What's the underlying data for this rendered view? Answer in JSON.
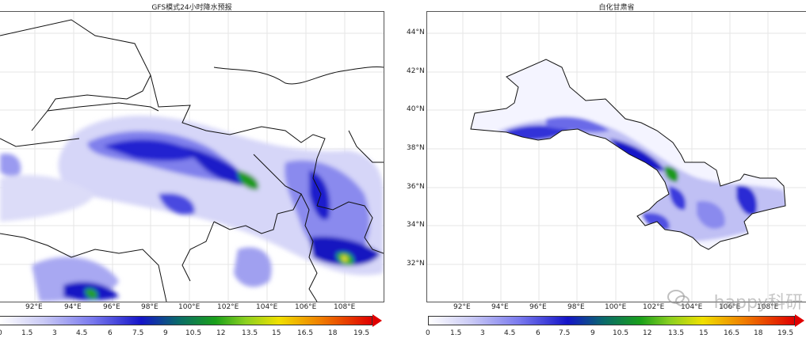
{
  "left_panel": {
    "title": "GFS模式24小时降水预报",
    "lon_labels": [
      "92°E",
      "94°E",
      "96°E",
      "98°E",
      "100°E",
      "102°E",
      "104°E",
      "106°E",
      "108°E"
    ],
    "colorbar_labels": [
      "0",
      "1.5",
      "3",
      "4.5",
      "6",
      "7.5",
      "9",
      "10.5",
      "12",
      "13.5",
      "15",
      "16.5",
      "18",
      "19.5"
    ]
  },
  "right_panel": {
    "title": "白化甘肃省",
    "lon_labels": [
      "92°E",
      "94°E",
      "96°E",
      "98°E",
      "100°E",
      "102°E",
      "104°E",
      "106°E",
      "108°E"
    ],
    "lat_labels": [
      "44°N",
      "42°N",
      "40°N",
      "38°N",
      "36°N",
      "34°N",
      "32°N"
    ],
    "colorbar_labels": [
      "0",
      "1.5",
      "3",
      "4.5",
      "6",
      "7.5",
      "9",
      "10.5",
      "12",
      "13.5",
      "15",
      "16.5",
      "18",
      "19.5"
    ]
  },
  "colors": {
    "low": "#ffffff",
    "light_blue": "#c8c8f5",
    "mid_blue": "#7878ee",
    "deep_blue": "#1414c8",
    "green": "#1aa01a",
    "yellow": "#f0e000",
    "orange": "#f08000",
    "red": "#e00000"
  },
  "watermark": {
    "text": "happy科研"
  }
}
